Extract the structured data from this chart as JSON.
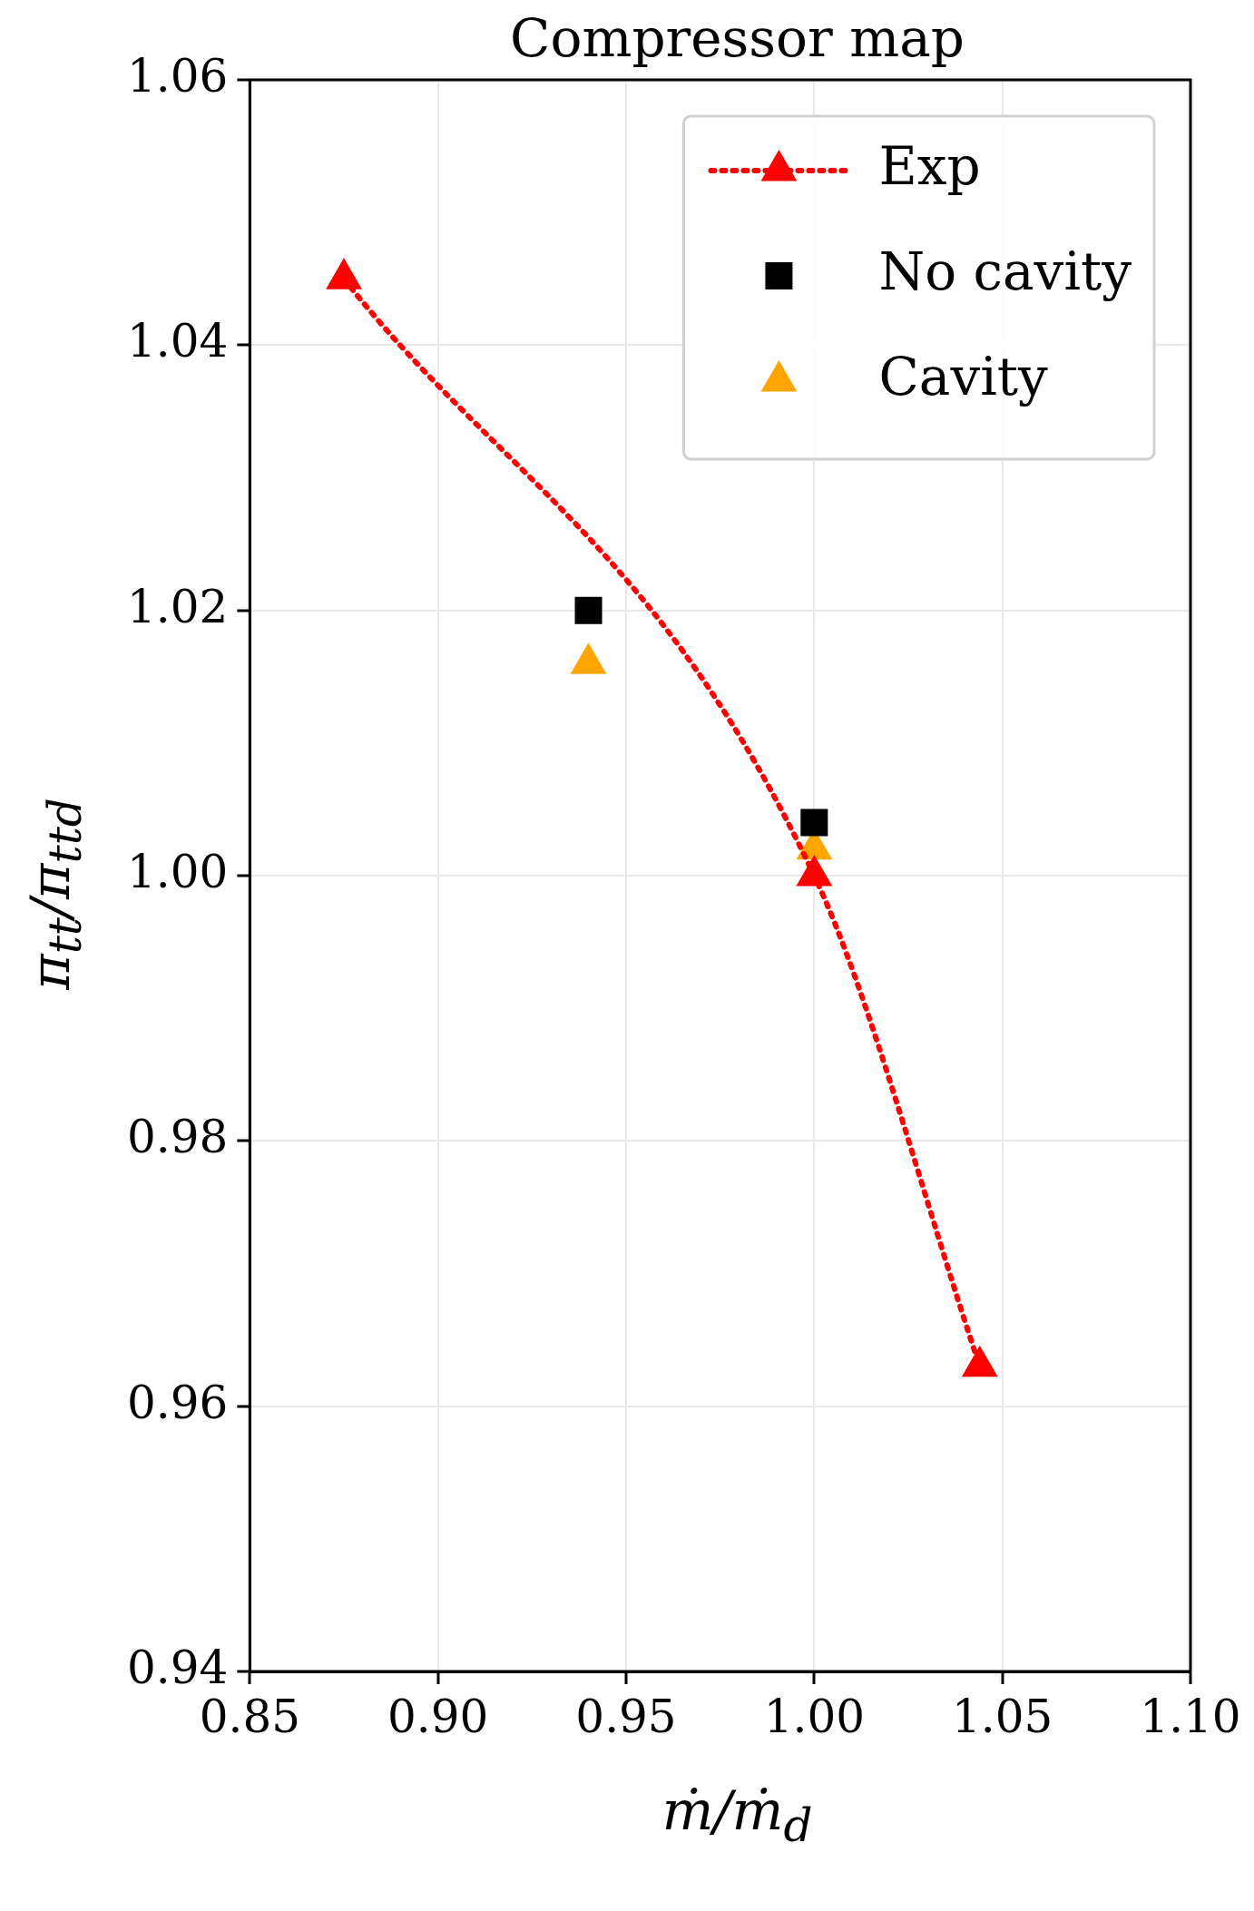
{
  "chart_data": {
    "type": "line",
    "title": "Compressor map",
    "xlabel": "ṁ/ṁ$_{d}$",
    "ylabel": "π$_{tt}$/π$_{ttd}$",
    "xlim": [
      0.85,
      1.1
    ],
    "ylim": [
      0.94,
      1.06
    ],
    "xticks": [
      {
        "value": 0.85,
        "label": "0.85"
      },
      {
        "value": 0.9,
        "label": "0.90"
      },
      {
        "value": 0.95,
        "label": "0.95"
      },
      {
        "value": 1.0,
        "label": "1.00"
      },
      {
        "value": 1.05,
        "label": "1.05"
      },
      {
        "value": 1.1,
        "label": "1.10"
      }
    ],
    "yticks": [
      {
        "value": 0.94,
        "label": "0.94"
      },
      {
        "value": 0.96,
        "label": "0.96"
      },
      {
        "value": 0.98,
        "label": "0.98"
      },
      {
        "value": 1.0,
        "label": "1.00"
      },
      {
        "value": 1.02,
        "label": "1.02"
      },
      {
        "value": 1.04,
        "label": "1.04"
      },
      {
        "value": 1.06,
        "label": "1.06"
      }
    ],
    "grid": true,
    "legend": "top right",
    "series": [
      {
        "name": "Exp",
        "color": "#ff0000",
        "marker": "triangle",
        "line_style": "dotted",
        "x": [
          0.875,
          1.0,
          1.044
        ],
        "values": [
          1.045,
          1.0,
          0.963
        ]
      },
      {
        "name": "No cavity",
        "type": "scatter",
        "color": "#000000",
        "marker": "square",
        "x": [
          0.94,
          1.0
        ],
        "values": [
          1.02,
          1.004
        ]
      },
      {
        "name": "Cavity",
        "type": "scatter",
        "color": "#ffa500",
        "marker": "triangle",
        "x": [
          0.94,
          1.0
        ],
        "values": [
          1.016,
          1.002
        ]
      }
    ]
  }
}
